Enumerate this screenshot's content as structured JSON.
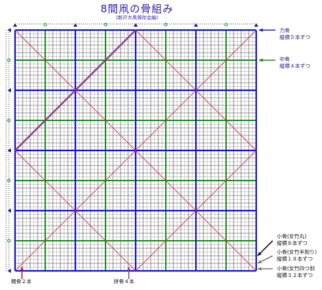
{
  "title": "8間凧の骨組み",
  "subtitle": "(新戸大凧保存会編)",
  "colors": {
    "blue_bone": "#1010c8",
    "green_bone": "#1a8a1a",
    "red_diagonal": "#cc3355",
    "grid_fine": "#222222",
    "arrow_red": "#cc1133",
    "arrow_purple": "#8a4a9a",
    "arrow_blue": "#1a1acc",
    "arrow_green": "#1a8a1a",
    "arrow_gray": "#777777"
  },
  "labels": {
    "chikara_line1": "力骨",
    "chikara_line2": "縦横５本ずつ",
    "naka_line1": "中骨",
    "naka_line2": "縦横４本ずつ",
    "ko1_line1": "小骨(女竹丸)",
    "ko1_line2": "縦横８本ずつ",
    "ko2_line1": "小骨(女竹半割り)",
    "ko2_line2": "縦横１８本ずつ",
    "ko3_line1": "小骨(女竹四つ割",
    "ko3_line2": "縦横３２本ずつ",
    "oya": "親骨２本",
    "sugai": "拼骨４本"
  }
}
